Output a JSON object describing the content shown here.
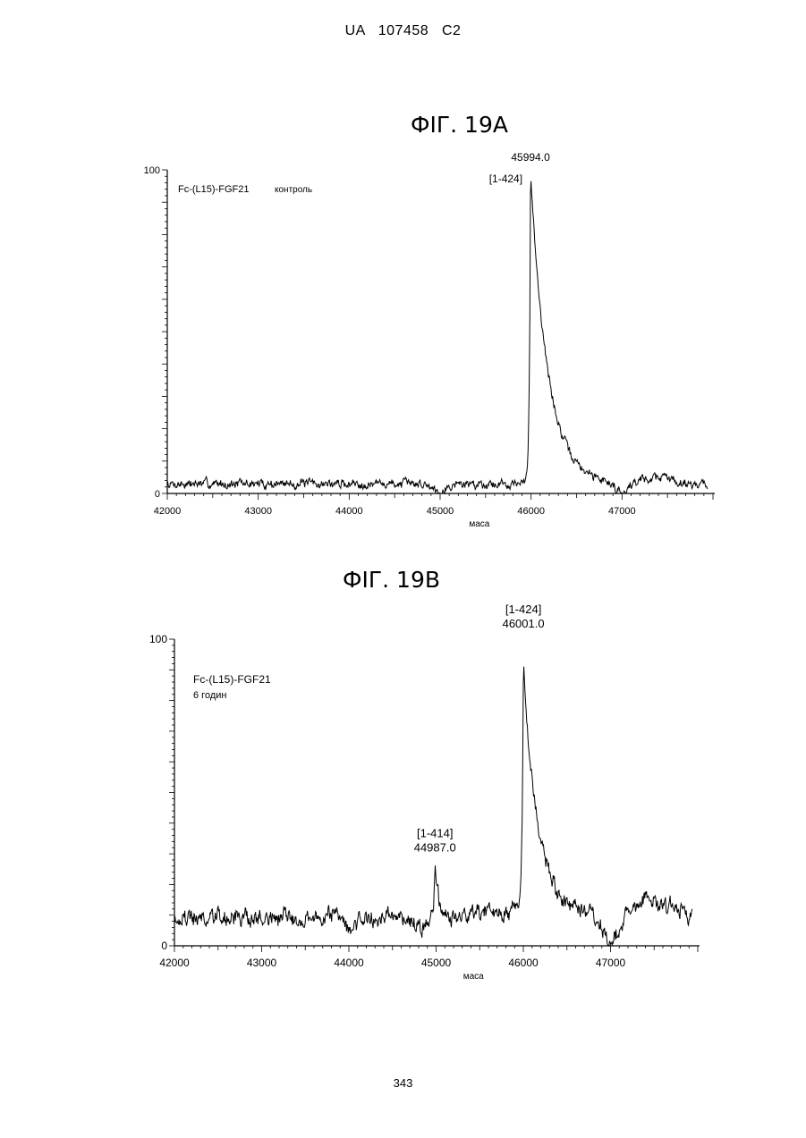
{
  "header": {
    "text": "UA   107458   C2"
  },
  "page_number": "343",
  "chart_data": [
    {
      "type": "line",
      "title": "ФІГ. 19А",
      "xlabel": "маса",
      "ylabel": "",
      "xlim": [
        42000,
        48000
      ],
      "ylim": [
        0,
        100
      ],
      "x_ticks": [
        42000,
        43000,
        44000,
        45000,
        46000,
        47000
      ],
      "y_ticks": [
        0,
        100
      ],
      "sample_label": "Fc-(L15)-FGF21",
      "condition_label": "контроль",
      "peaks": [
        {
          "x": 45994.0,
          "y": 100,
          "mass_label": "45994.0",
          "range_label": "[1-424]"
        }
      ],
      "series": [
        {
          "baseline": 3,
          "noise": 1.2,
          "seed": 7,
          "dips": [
            [
              45000,
              -2
            ],
            [
              47000,
              -3
            ]
          ],
          "bumps": [
            [
              47450,
              2
            ],
            [
              47200,
              1
            ]
          ],
          "peaks": [
            [
              45994,
              97,
              12,
              140
            ]
          ]
        }
      ],
      "grid": false,
      "legend": "none"
    },
    {
      "type": "line",
      "title": "ФІГ. 19В",
      "xlabel": "маса",
      "ylabel": "",
      "xlim": [
        42000,
        48000
      ],
      "ylim": [
        0,
        100
      ],
      "x_ticks": [
        42000,
        43000,
        44000,
        45000,
        46000,
        47000
      ],
      "y_ticks": [
        0,
        100
      ],
      "sample_label": "Fc-(L15)-FGF21",
      "condition_label": "6 годин",
      "peaks": [
        {
          "x": 44987.0,
          "y": 27,
          "mass_label": "44987.0",
          "range_label": "[1-414]"
        },
        {
          "x": 46001.0,
          "y": 100,
          "mass_label": "46001.0",
          "range_label": "[1-424]"
        }
      ],
      "series": [
        {
          "baseline": 9,
          "noise": 2.4,
          "seed": 19,
          "dips": [
            [
              44000,
              -5
            ],
            [
              47000,
              -8
            ],
            [
              44850,
              -3
            ]
          ],
          "bumps": [
            [
              43900,
              3
            ],
            [
              45600,
              2
            ],
            [
              47400,
              7
            ],
            [
              47700,
              4
            ]
          ],
          "peaks": [
            [
              44987,
              17,
              15,
              30
            ],
            [
              46001,
              82,
              15,
              130
            ],
            [
              45880,
              5,
              40,
              40
            ]
          ]
        }
      ],
      "grid": false,
      "legend": "none"
    }
  ]
}
